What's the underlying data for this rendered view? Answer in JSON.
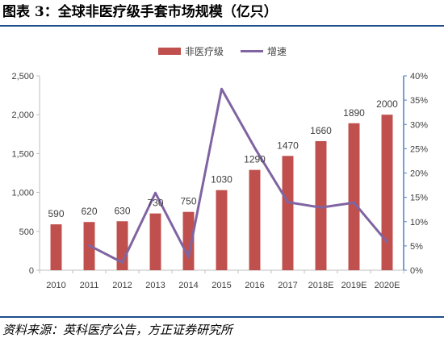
{
  "figure": {
    "title": "图表 3：全球非医疗级手套市场规模（亿只）",
    "source": "资料来源：英科医疗公告，方正证券研究所"
  },
  "colors": {
    "bar": "#c0504d",
    "line": "#8064a2",
    "rule": "#1f4e8c",
    "right_axis": "#4f81bd"
  },
  "chart_data": {
    "type": "bar",
    "categories": [
      "2010",
      "2011",
      "2012",
      "2013",
      "2014",
      "2015",
      "2016",
      "2017",
      "2018E",
      "2019E",
      "2020E"
    ],
    "series": [
      {
        "name": "非医疗级",
        "type": "bar",
        "axis": "left",
        "values": [
          590,
          620,
          630,
          730,
          750,
          1030,
          1290,
          1470,
          1660,
          1890,
          2000
        ],
        "data_labels": [
          "590",
          "620",
          "630",
          "730",
          "750",
          "1030",
          "1290",
          "1470",
          "1660",
          "1890",
          "2000"
        ]
      },
      {
        "name": "增速",
        "type": "line",
        "axis": "right",
        "values": [
          null,
          5.1,
          1.6,
          15.9,
          2.7,
          37.3,
          25.2,
          14.0,
          12.9,
          13.9,
          5.8
        ]
      }
    ],
    "y_left": {
      "ylim": [
        0,
        2500
      ],
      "ticks": [
        "0",
        "500",
        "1,000",
        "1,500",
        "2,000",
        "2,500"
      ]
    },
    "y_right": {
      "ylim": [
        0,
        40
      ],
      "ticks": [
        "0%",
        "5%",
        "10%",
        "15%",
        "20%",
        "25%",
        "30%",
        "35%",
        "40%"
      ]
    },
    "grid": false,
    "legend_position": "top-center"
  }
}
